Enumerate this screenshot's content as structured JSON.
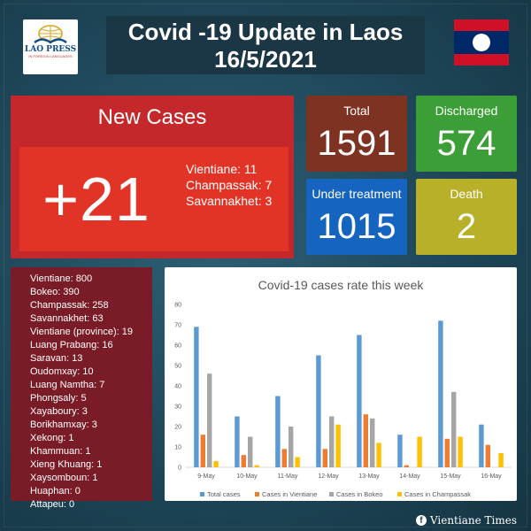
{
  "logo": {
    "name": "LAO PRESS",
    "tagline": "IN FOREIGN LANGUAGES"
  },
  "header": {
    "title": "Covid -19 Update in Laos",
    "date": "16/5/2021"
  },
  "flag": {
    "red": "#ce1126",
    "blue": "#002868",
    "white": "#ffffff"
  },
  "new_cases": {
    "label": "New Cases",
    "value": "+21",
    "by_province": [
      "Vientiane: 11",
      "Champassak: 7",
      "Savannakhet: 3"
    ]
  },
  "stats": {
    "total": {
      "label": "Total",
      "value": "1591"
    },
    "discharged": {
      "label": "Discharged",
      "value": "574"
    },
    "under_treatment": {
      "label": "Under treatment",
      "value": "1015"
    },
    "death": {
      "label": "Death",
      "value": "2"
    }
  },
  "province_totals": [
    "Vientiane: 800",
    "Bokeo: 390",
    "Champassak: 258",
    "Savannakhet: 63",
    "Vientiane (province): 19",
    "Luang Prabang: 16",
    "Saravan: 13",
    "Oudomxay: 10",
    "Luang Namtha: 7",
    "Phongsaly: 5",
    "Xayaboury: 3",
    "Borikhamxay: 3",
    "Xekong: 1",
    "Khammuan: 1",
    "Xieng Khuang: 1",
    "Xaysomboun: 1",
    "Huaphan: 0",
    "Attapeu: 0"
  ],
  "chart_data": {
    "type": "bar",
    "title": "Covid-19 cases rate this week",
    "categories": [
      "9-May",
      "10-May",
      "11-May",
      "12-May",
      "13-May",
      "14-May",
      "15-May",
      "16-May"
    ],
    "series": [
      {
        "name": "Total cases",
        "color": "#5b9bd5",
        "values": [
          69,
          25,
          35,
          55,
          65,
          16,
          72,
          21
        ]
      },
      {
        "name": "Cases in Vientiane",
        "color": "#ed7d31",
        "values": [
          16,
          6,
          9,
          9,
          26,
          1,
          14,
          11
        ]
      },
      {
        "name": "Cases in Bokeo",
        "color": "#a5a5a5",
        "values": [
          46,
          15,
          20,
          25,
          24,
          0,
          37,
          0
        ]
      },
      {
        "name": "Cases in Champassak",
        "color": "#ffc000",
        "values": [
          3,
          1,
          5,
          21,
          12,
          15,
          15,
          7
        ]
      }
    ],
    "yticks": [
      "0",
      "10",
      "20",
      "30",
      "40",
      "50",
      "60",
      "70",
      "80"
    ],
    "ylim": [
      0,
      80
    ],
    "legend": "bottom",
    "grid": false
  },
  "credit": {
    "source": "Vientiane Times"
  }
}
